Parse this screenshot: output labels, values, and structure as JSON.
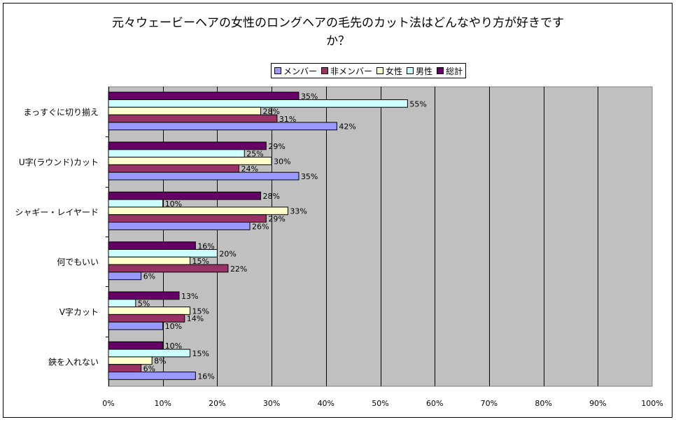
{
  "chart_data": {
    "type": "bar",
    "orientation": "horizontal",
    "title": "元々ウェービーヘアの女性のロングヘアの毛先のカット法はどんなやり方が好きですか？",
    "title_lines": [
      "元々ウェービーヘアの女性のロングヘアの毛先のカット法はどんなやり方が好きです",
      "か？"
    ],
    "xlabel": "",
    "ylabel": "",
    "xlim": [
      0,
      100
    ],
    "x_ticks": [
      "0%",
      "10%",
      "20%",
      "30%",
      "40%",
      "50%",
      "60%",
      "70%",
      "80%",
      "90%",
      "100%"
    ],
    "grid": true,
    "legend_position": "top",
    "categories": [
      "まっすぐに切り揃え",
      "U字(ラウンド)カット",
      "シャギー・レイヤード",
      "何でもいい",
      "V字カット",
      "鋏を入れない"
    ],
    "series": [
      {
        "name": "メンバー",
        "color": "#9999ff",
        "values": [
          42,
          35,
          26,
          6,
          10,
          16
        ]
      },
      {
        "name": "非メンバー",
        "color": "#993366",
        "values": [
          31,
          24,
          29,
          22,
          14,
          6
        ]
      },
      {
        "name": "女性",
        "color": "#ffffcc",
        "values": [
          28,
          30,
          33,
          15,
          15,
          8
        ]
      },
      {
        "name": "男性",
        "color": "#ccffff",
        "values": [
          55,
          25,
          10,
          20,
          5,
          15
        ]
      },
      {
        "name": "総計",
        "color": "#660066",
        "values": [
          35,
          29,
          28,
          16,
          13,
          10
        ]
      }
    ],
    "value_label_suffix": "%",
    "plot_background": "#c0c0c0"
  }
}
